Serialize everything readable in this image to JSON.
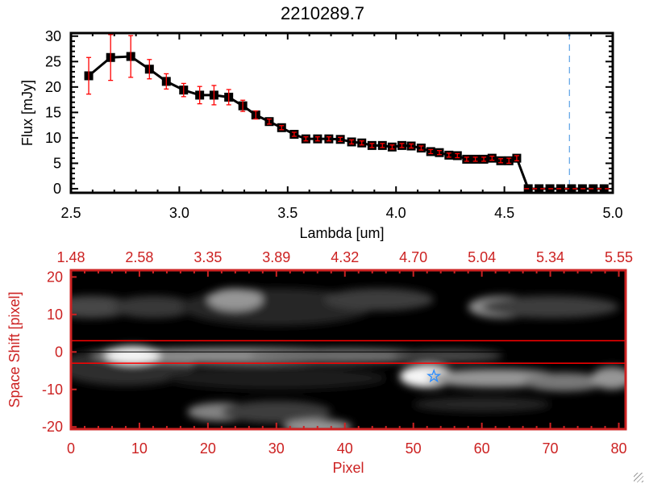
{
  "title": "2210289.7",
  "colors": {
    "marker": "#000000",
    "error_bar": "#ff0000",
    "zero_line": "#ff0000",
    "cutoff_line": "#3a8ee0",
    "bottom_axes": "#cc2222",
    "star": "#2a8cff",
    "aperture_lines": "#ff0000"
  },
  "chart_data": [
    {
      "type": "line",
      "xlabel": "Lambda [um]",
      "ylabel": "Flux [mJy]",
      "xlim": [
        2.5,
        5.0
      ],
      "ylim": [
        -0.8,
        30.6
      ],
      "xticks": [
        "2.5",
        "3.0",
        "3.5",
        "4.0",
        "4.5",
        "5.0"
      ],
      "yticks": [
        "0",
        "5",
        "10",
        "15",
        "20",
        "25",
        "30"
      ],
      "grid": false,
      "markers": "filled-square",
      "cutoff_x": 4.8,
      "x": [
        2.582,
        2.683,
        2.776,
        2.862,
        2.94,
        3.02,
        3.094,
        3.16,
        3.228,
        3.293,
        3.353,
        3.415,
        3.472,
        3.53,
        3.584,
        3.638,
        3.69,
        3.743,
        3.795,
        3.842,
        3.889,
        3.937,
        3.982,
        4.027,
        4.07,
        4.116,
        4.16,
        4.2,
        4.244,
        4.283,
        4.326,
        4.366,
        4.405,
        4.443,
        4.483,
        4.521,
        4.557,
        4.61,
        4.66,
        4.71,
        4.76,
        4.81,
        4.86,
        4.91,
        4.96
      ],
      "y": [
        22.2,
        25.8,
        26.0,
        23.5,
        21.1,
        19.4,
        18.4,
        18.4,
        18.0,
        16.3,
        14.5,
        13.2,
        12.0,
        10.7,
        9.8,
        9.8,
        9.8,
        9.7,
        9.2,
        9.0,
        8.5,
        8.5,
        8.2,
        8.5,
        8.4,
        8.0,
        7.3,
        7.1,
        6.6,
        6.5,
        5.8,
        5.8,
        5.8,
        6.0,
        5.5,
        5.5,
        6.0,
        0,
        0,
        0,
        0,
        0,
        0,
        0,
        0
      ],
      "yerr": [
        3.6,
        4.5,
        4.1,
        1.9,
        1.5,
        1.3,
        1.7,
        1.9,
        1.5,
        1.1,
        0.8,
        0.5,
        0.4,
        0.4,
        0.4,
        0.4,
        0.4,
        0.4,
        0.4,
        0.4,
        0.4,
        0.4,
        0.4,
        0.4,
        0.4,
        0.4,
        0.4,
        0.4,
        0.4,
        0.4,
        0.4,
        0.4,
        0.4,
        0.4,
        0.4,
        0.5,
        0.5,
        0,
        0,
        0,
        0,
        0,
        0,
        0,
        0
      ]
    },
    {
      "type": "heatmap",
      "xlabel": "Pixel",
      "ylabel": "Space Shift [pixel]",
      "xlim": [
        0,
        81
      ],
      "ylim": [
        -20.6,
        21.8
      ],
      "xticks": [
        "0",
        "10",
        "20",
        "30",
        "40",
        "50",
        "60",
        "70",
        "80"
      ],
      "top_xticks": [
        "1.48",
        "2.58",
        "3.35",
        "3.89",
        "4.32",
        "4.70",
        "5.04",
        "5.34",
        "5.55"
      ],
      "yticks": [
        "-20",
        "-10",
        "0",
        "10",
        "20"
      ],
      "colormap": "grayscale",
      "aperture_lines_y": [
        3,
        -3
      ],
      "center_line_y": 0,
      "star_marker": {
        "x": 53,
        "y": -6.5
      }
    }
  ]
}
